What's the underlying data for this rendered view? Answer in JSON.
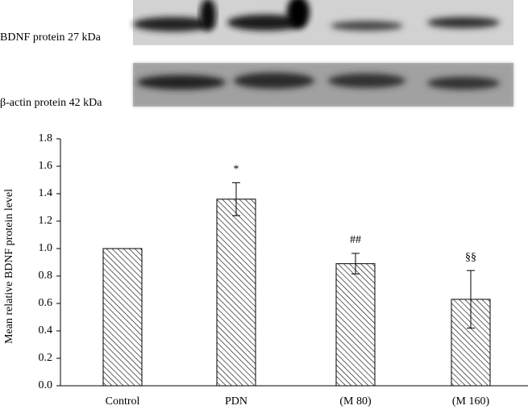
{
  "blot_labels": [
    "BDNF protein 27 kDa",
    "β-actin protein 42 kDa"
  ],
  "chart_data": {
    "type": "bar",
    "y_label": "Mean relative BDNF protein level",
    "categories": [
      "Control",
      "PDN",
      "(M 80)",
      "(M 160)"
    ],
    "values": [
      1.0,
      1.36,
      0.89,
      0.63
    ],
    "errors": [
      null,
      0.12,
      0.075,
      0.21
    ],
    "annotations": [
      null,
      "*",
      "##",
      "§§"
    ],
    "color": "#000000",
    "ylim": [
      0,
      1.8
    ],
    "yticks": [
      {
        "value": 0,
        "label": "0.0"
      },
      0.2,
      0.4,
      0.6,
      0.8,
      {
        "value": 1,
        "label": "1.0"
      },
      1.2,
      1.4,
      1.6,
      1.8
    ]
  }
}
